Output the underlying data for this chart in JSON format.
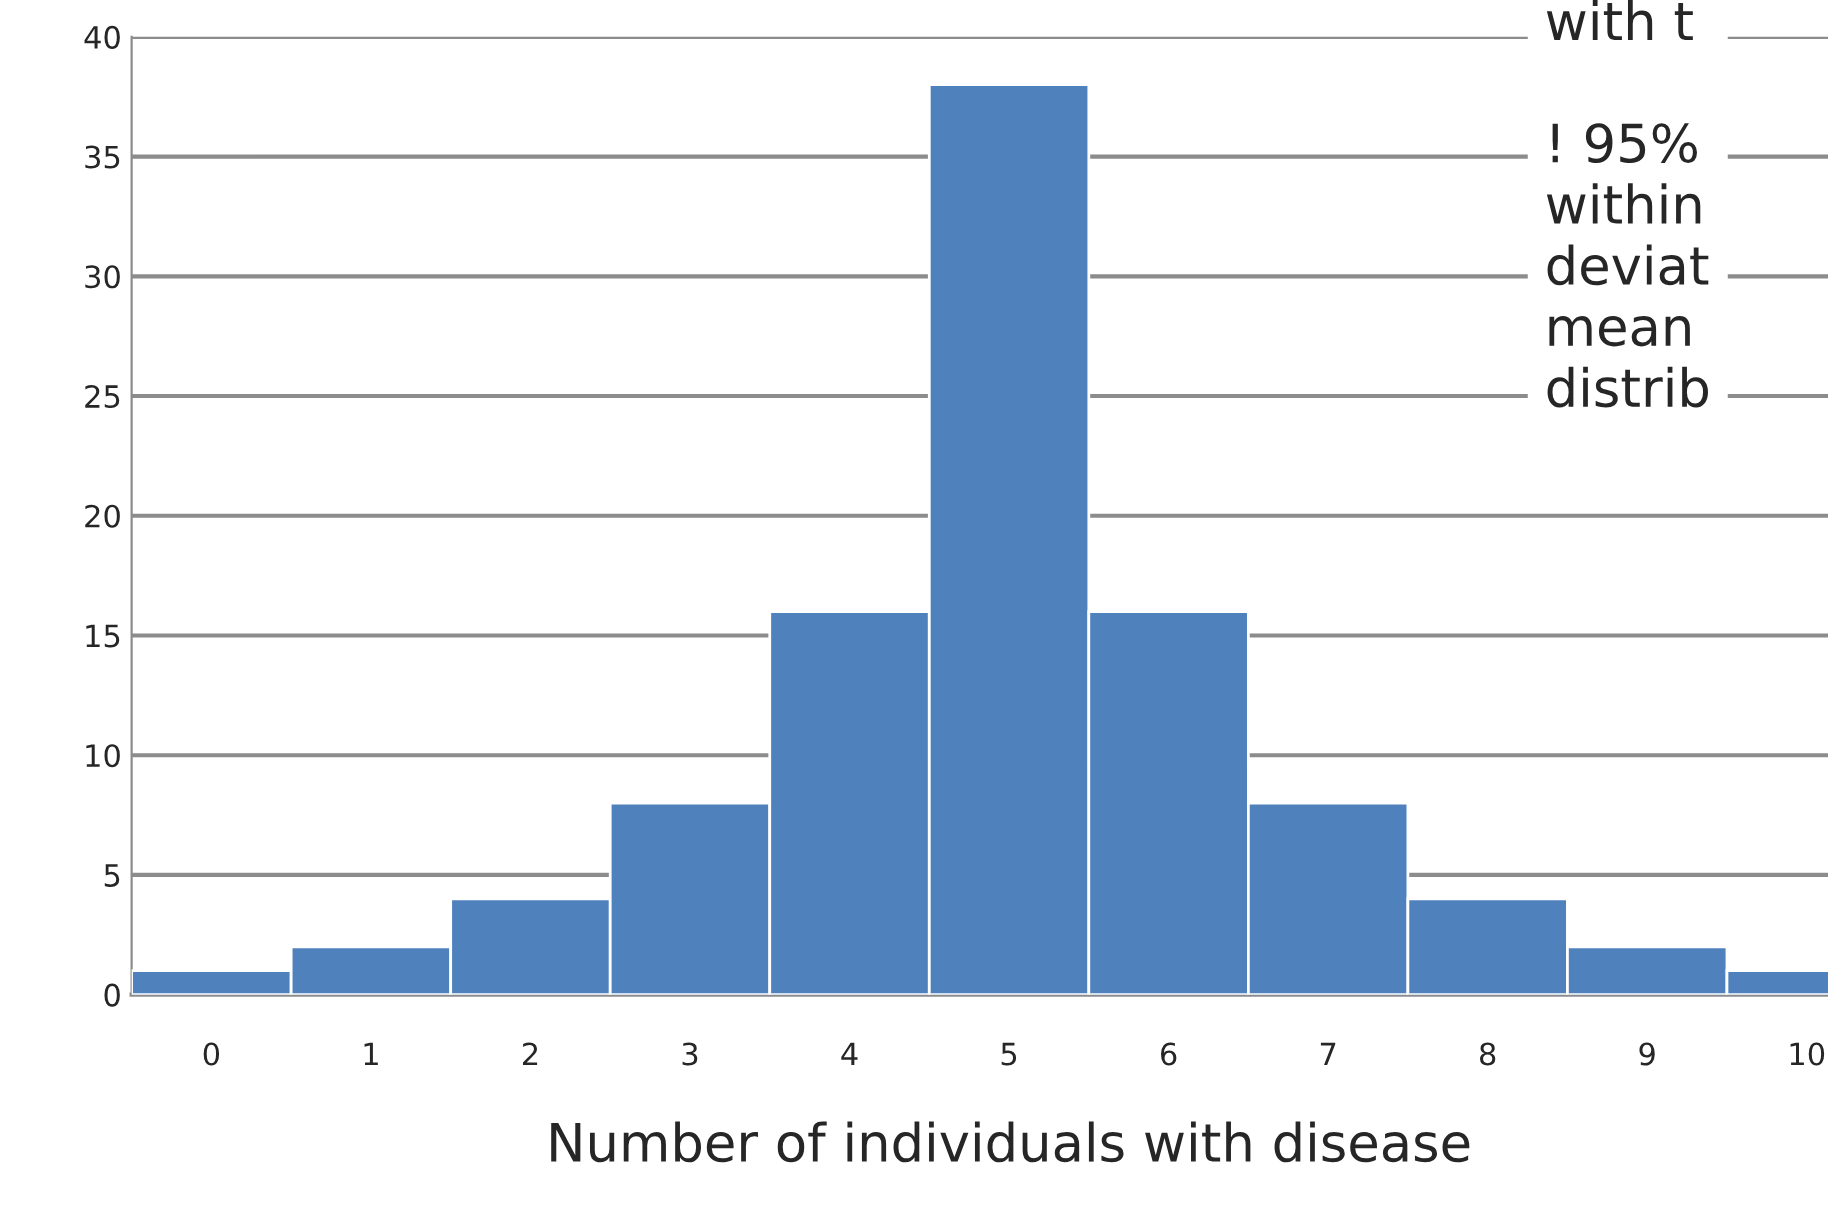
{
  "chart_data": {
    "type": "bar",
    "xlabel": "Number of individuals with disease",
    "categories": [
      "0",
      "1",
      "2",
      "3",
      "4",
      "5",
      "6",
      "7",
      "8",
      "9",
      "10"
    ],
    "values": [
      1,
      2,
      4,
      8,
      16,
      38,
      16,
      8,
      4,
      2,
      1
    ],
    "color": "#4f81bd",
    "ylim": [
      0,
      40
    ],
    "yticks": [
      0,
      5,
      10,
      15,
      20,
      25,
      30,
      35,
      40
    ],
    "grid": "y",
    "annotations": [
      "with t\n\n! 95%\nwithin\ndeviat\nmean\ndistrib"
    ]
  }
}
